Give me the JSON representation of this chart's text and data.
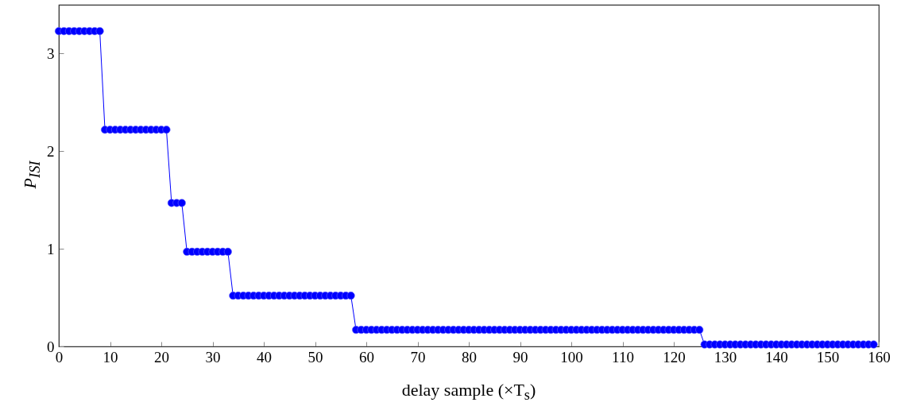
{
  "chart_data": {
    "type": "line",
    "xlabel": "delay sample (×T$_{s}$)",
    "ylabel": "P$_{ISI}$",
    "x": [
      0,
      1,
      2,
      3,
      4,
      5,
      6,
      7,
      8,
      9,
      10,
      11,
      12,
      13,
      14,
      15,
      16,
      17,
      18,
      19,
      20,
      21,
      22,
      23,
      24,
      25,
      26,
      27,
      28,
      29,
      30,
      31,
      32,
      33,
      34,
      35,
      36,
      37,
      38,
      39,
      40,
      41,
      42,
      43,
      44,
      45,
      46,
      47,
      48,
      49,
      50,
      51,
      52,
      53,
      54,
      55,
      56,
      57,
      58,
      59,
      60,
      61,
      62,
      63,
      64,
      65,
      66,
      67,
      68,
      69,
      70,
      71,
      72,
      73,
      74,
      75,
      76,
      77,
      78,
      79,
      80,
      81,
      82,
      83,
      84,
      85,
      86,
      87,
      88,
      89,
      90,
      91,
      92,
      93,
      94,
      95,
      96,
      97,
      98,
      99,
      100,
      101,
      102,
      103,
      104,
      105,
      106,
      107,
      108,
      109,
      110,
      111,
      112,
      113,
      114,
      115,
      116,
      117,
      118,
      119,
      120,
      121,
      122,
      123,
      124,
      125,
      126,
      127,
      128,
      129,
      130,
      131,
      132,
      133,
      134,
      135,
      136,
      137,
      138,
      139,
      140,
      141,
      142,
      143,
      144,
      145,
      146,
      147,
      148,
      149,
      150,
      151,
      152,
      153,
      154,
      155,
      156,
      157,
      158,
      159
    ],
    "series": [
      {
        "color": "#0000ff",
        "values": [
          3.23,
          3.23,
          3.23,
          3.23,
          3.23,
          3.23,
          3.23,
          3.23,
          3.23,
          2.22,
          2.22,
          2.22,
          2.22,
          2.22,
          2.22,
          2.22,
          2.22,
          2.22,
          2.22,
          2.22,
          2.22,
          2.22,
          1.47,
          1.47,
          1.47,
          0.97,
          0.97,
          0.97,
          0.97,
          0.97,
          0.97,
          0.97,
          0.97,
          0.97,
          0.52,
          0.52,
          0.52,
          0.52,
          0.52,
          0.52,
          0.52,
          0.52,
          0.52,
          0.52,
          0.52,
          0.52,
          0.52,
          0.52,
          0.52,
          0.52,
          0.52,
          0.52,
          0.52,
          0.52,
          0.52,
          0.52,
          0.52,
          0.52,
          0.17,
          0.17,
          0.17,
          0.17,
          0.17,
          0.17,
          0.17,
          0.17,
          0.17,
          0.17,
          0.17,
          0.17,
          0.17,
          0.17,
          0.17,
          0.17,
          0.17,
          0.17,
          0.17,
          0.17,
          0.17,
          0.17,
          0.17,
          0.17,
          0.17,
          0.17,
          0.17,
          0.17,
          0.17,
          0.17,
          0.17,
          0.17,
          0.17,
          0.17,
          0.17,
          0.17,
          0.17,
          0.17,
          0.17,
          0.17,
          0.17,
          0.17,
          0.17,
          0.17,
          0.17,
          0.17,
          0.17,
          0.17,
          0.17,
          0.17,
          0.17,
          0.17,
          0.17,
          0.17,
          0.17,
          0.17,
          0.17,
          0.17,
          0.17,
          0.17,
          0.17,
          0.17,
          0.17,
          0.17,
          0.17,
          0.17,
          0.17,
          0.17,
          0.02,
          0.02,
          0.02,
          0.02,
          0.02,
          0.02,
          0.02,
          0.02,
          0.02,
          0.02,
          0.02,
          0.02,
          0.02,
          0.02,
          0.02,
          0.02,
          0.02,
          0.02,
          0.02,
          0.02,
          0.02,
          0.02,
          0.02,
          0.02,
          0.02,
          0.02,
          0.02,
          0.02,
          0.02,
          0.02,
          0.02,
          0.02,
          0.02,
          0.02
        ]
      }
    ],
    "xlim": [
      0,
      160
    ],
    "xticks": [
      0,
      10,
      20,
      30,
      40,
      50,
      60,
      70,
      80,
      90,
      100,
      110,
      120,
      130,
      140,
      150,
      160
    ],
    "ylim": [
      0,
      3.5
    ],
    "yticks": [
      0,
      1,
      2,
      3
    ],
    "grid": false,
    "marker": "circle",
    "line_style": "solid"
  }
}
